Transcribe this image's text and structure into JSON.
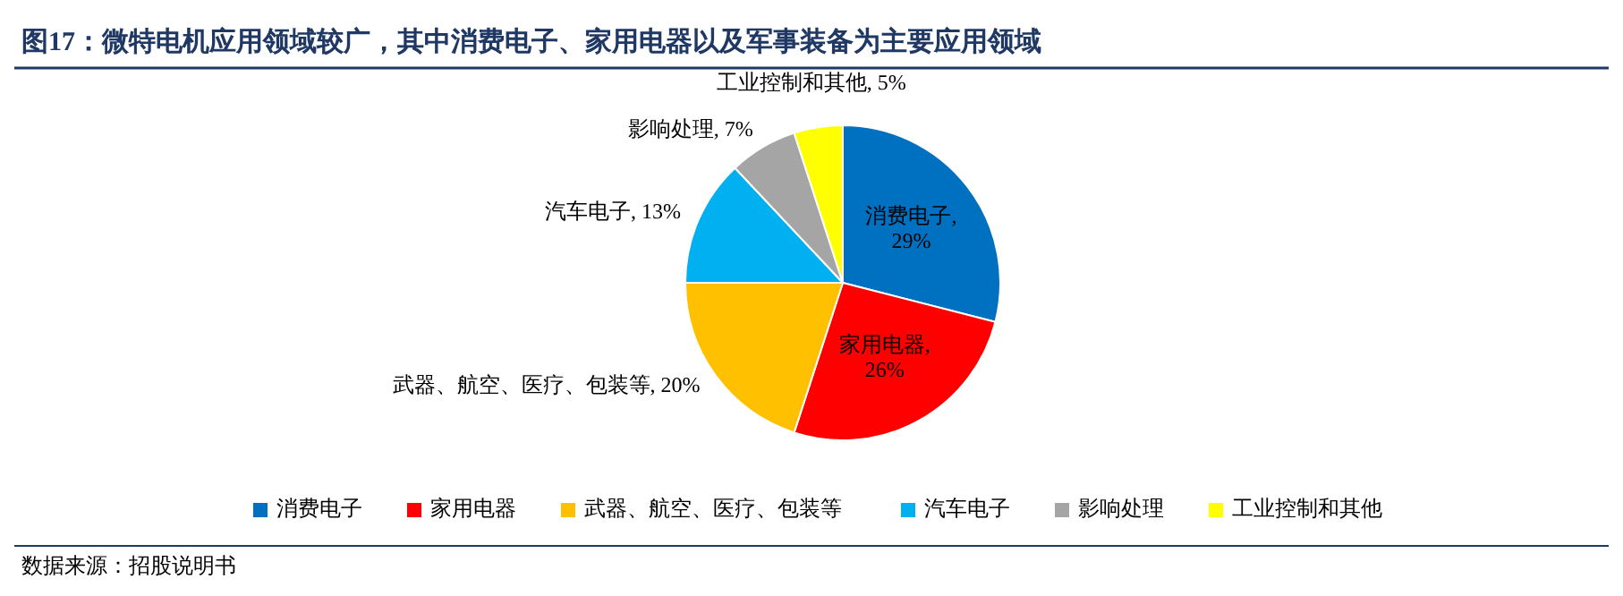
{
  "chart_data": {
    "type": "pie",
    "title": "图17：微特电机应用领域较广，其中消费电子、家用电器以及军事装备为主要应用领域",
    "categories": [
      "消费电子",
      "家用电器",
      "武器、航空、医疗、包装等",
      "汽车电子",
      "影响处理",
      "工业控制和其他"
    ],
    "values": [
      29,
      26,
      20,
      13,
      7,
      5
    ],
    "colors": [
      "#0070c0",
      "#ff0000",
      "#ffc000",
      "#00b0f0",
      "#a5a5a5",
      "#ffff00"
    ],
    "value_labels": [
      "消费电子, 29%",
      "家用电器, 26%",
      "武器、航空、医疗、包装等, 20%",
      "汽车电子, 13%",
      "影响处理, 7%",
      "工业控制和其他, 5%"
    ],
    "legend": "bottom",
    "annotations": [
      "数据来源：招股说明书"
    ]
  }
}
